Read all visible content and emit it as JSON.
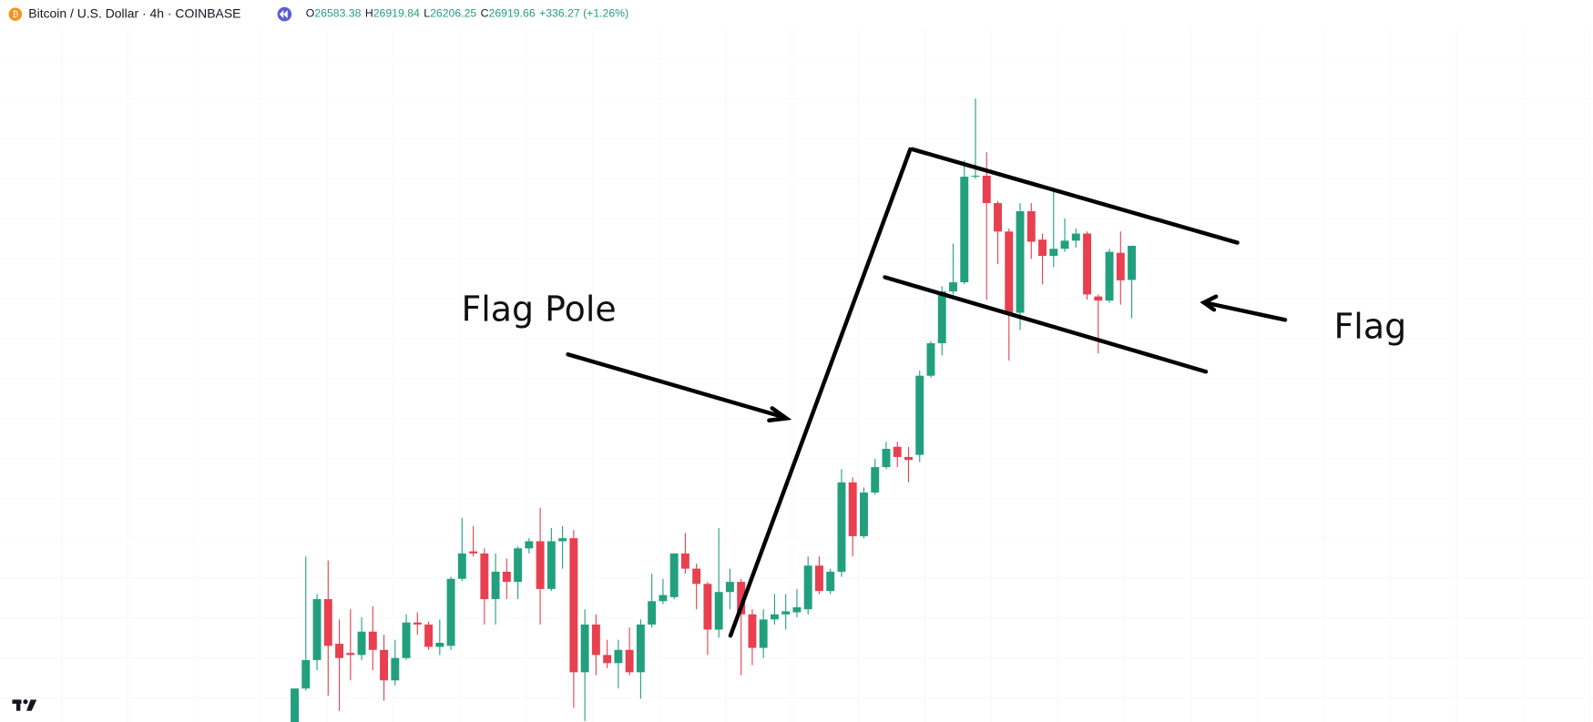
{
  "chart_data": {
    "type": "candlestick",
    "symbol": "Bitcoin / U.S. Dollar · 4h · COINBASE",
    "ohlc_labels": [
      "O",
      "H",
      "L",
      "C"
    ],
    "change_label": "+336.27 (+1.26%)",
    "annotations": [
      "Flag Pole",
      "Flag"
    ],
    "up_color": "#22a07e",
    "down_color": "#e84050",
    "ylim": [
      22230,
      29340
    ],
    "grid": true,
    "open": [
      22230,
      22560,
      22840,
      23440,
      23000,
      22910,
      22890,
      23120,
      22940,
      22640,
      22860,
      23210,
      23190,
      22970,
      22980,
      23640,
      23910,
      23890,
      23440,
      23710,
      23610,
      23940,
      24010,
      23540,
      24010,
      24040,
      22720,
      23190,
      22890,
      22810,
      22940,
      22720,
      23190,
      23420,
      23460,
      23890,
      23740,
      23590,
      23140,
      23510,
      23610,
      23290,
      22960,
      23240,
      23290,
      23310,
      23340,
      23770,
      23520,
      23710,
      24590,
      24060,
      24490,
      24740,
      24940,
      24840,
      24860,
      25640,
      25960,
      26470,
      26560,
      27600,
      27610,
      27340,
      27060,
      26260,
      27260,
      26980,
      26820,
      26890,
      26970,
      27040,
      26420,
      26380,
      26850,
      26583.38
    ],
    "high": [
      22560,
      23860,
      23490,
      23820,
      23240,
      23340,
      23260,
      23370,
      23090,
      23040,
      23290,
      23310,
      23220,
      23240,
      23660,
      24240,
      24160,
      23940,
      23890,
      23840,
      23960,
      24040,
      24340,
      24140,
      24160,
      24120,
      23340,
      23290,
      23040,
      23040,
      23160,
      23240,
      23690,
      23640,
      23890,
      24090,
      23790,
      23610,
      24140,
      23740,
      23640,
      23340,
      23340,
      23490,
      23490,
      23540,
      23860,
      23860,
      23740,
      24720,
      24640,
      24540,
      24820,
      24990,
      24990,
      24940,
      25690,
      25980,
      26520,
      26940,
      27760,
      28370,
      27840,
      27360,
      27090,
      27340,
      27340,
      27040,
      27460,
      27190,
      27090,
      27060,
      26440,
      26890,
      27060,
      26919.84
    ],
    "low": [
      22230,
      22540,
      22740,
      22490,
      22340,
      22640,
      22840,
      22740,
      22440,
      22590,
      22840,
      23090,
      22940,
      22890,
      22940,
      23620,
      23860,
      23190,
      23190,
      23440,
      23440,
      23890,
      23190,
      23520,
      23740,
      22370,
      22240,
      22690,
      22760,
      22560,
      22690,
      22460,
      23160,
      23390,
      23440,
      23690,
      23340,
      22890,
      23060,
      23340,
      22690,
      22790,
      22860,
      23190,
      23140,
      23260,
      23290,
      23490,
      23490,
      23660,
      23860,
      24040,
      24470,
      24720,
      24740,
      24590,
      24790,
      25620,
      25840,
      26440,
      26540,
      27580,
      26390,
      26740,
      25790,
      26090,
      26790,
      26540,
      26710,
      26860,
      26900,
      26390,
      25860,
      26360,
      26340,
      26206.25
    ],
    "close": [
      22560,
      22840,
      23440,
      22980,
      22860,
      22890,
      23120,
      22940,
      22640,
      22860,
      23210,
      23190,
      22970,
      23010,
      23640,
      23890,
      23890,
      23440,
      23710,
      23610,
      23940,
      24010,
      23540,
      24010,
      24040,
      22720,
      23190,
      22890,
      22810,
      22940,
      22720,
      23190,
      23420,
      23480,
      23890,
      23740,
      23590,
      23140,
      23510,
      23610,
      23290,
      22960,
      23240,
      23290,
      23320,
      23360,
      23770,
      23520,
      23710,
      24590,
      24060,
      24490,
      24740,
      24920,
      24840,
      24810,
      25640,
      25960,
      26470,
      26560,
      27600,
      27610,
      27340,
      27060,
      26260,
      27260,
      26960,
      26820,
      26890,
      26970,
      27040,
      26440,
      26380,
      26860,
      26580,
      26919.66
    ]
  }
}
